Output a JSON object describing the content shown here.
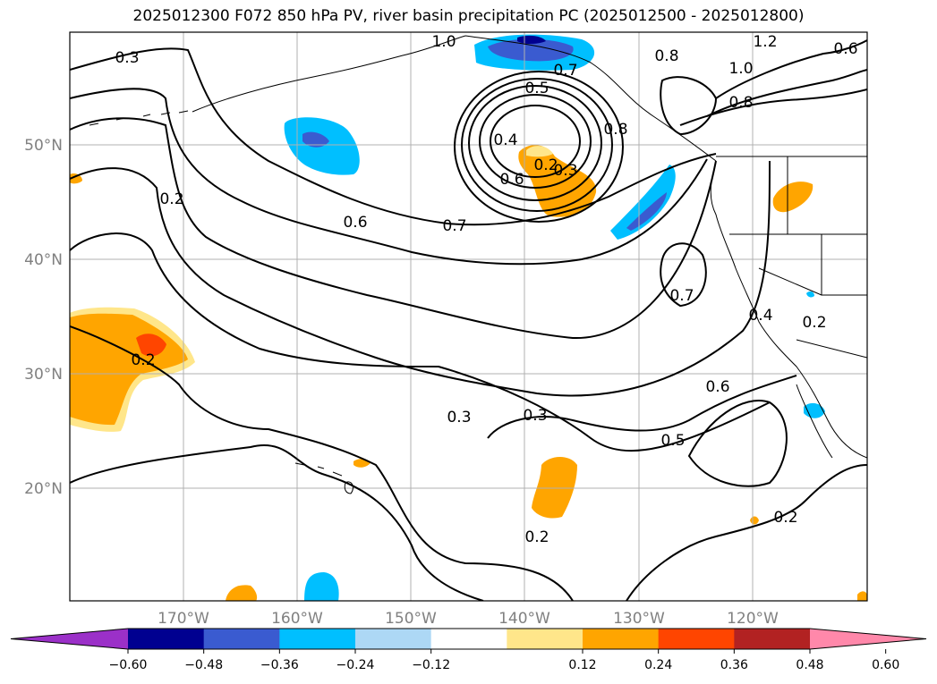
{
  "title": "2025012300 F072 850 hPa PV, river basin precipitation PC (2025012500 - 2025012800)",
  "map": {
    "lat_labels": [
      "50°N",
      "40°N",
      "30°N",
      "20°N"
    ],
    "lon_labels": [
      "170°W",
      "160°W",
      "150°W",
      "140°W",
      "130°W",
      "120°W"
    ],
    "contour_labels": [
      "0.3",
      "1.0",
      "1.2",
      "0.8",
      "1.0",
      "0.8",
      "0.6",
      "0.5",
      "0.7",
      "0.8",
      "0.4",
      "0.6",
      "0.2",
      "0.3",
      "0.2",
      "0.6",
      "0.7",
      "0.7",
      "0.2",
      "0.4",
      "0.2",
      "0.6",
      "0.3",
      "0.3",
      "0.5",
      "0.2",
      "0.2"
    ]
  },
  "colorbar": {
    "ticks": [
      "−0.60",
      "−0.48",
      "−0.36",
      "−0.24",
      "−0.12",
      "0.12",
      "0.24",
      "0.36",
      "0.48",
      "0.60"
    ],
    "colors": [
      "#9b30c8",
      "#000090",
      "#3a5bd0",
      "#00bfff",
      "#add8f5",
      "#ffffff",
      "#ffe68a",
      "#ffa500",
      "#ff4500",
      "#b22222",
      "#ff88aa"
    ]
  }
}
